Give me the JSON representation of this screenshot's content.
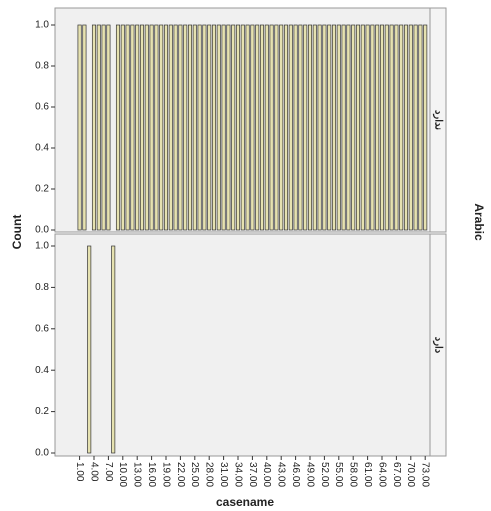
{
  "chart_data": {
    "type": "bar",
    "x_label": "casename",
    "y_label": "Count",
    "panel_group_label": "Arabic",
    "x": [
      1,
      2,
      3,
      4,
      5,
      6,
      7,
      8,
      9,
      10,
      11,
      12,
      13,
      14,
      15,
      16,
      17,
      18,
      19,
      20,
      21,
      22,
      23,
      24,
      25,
      26,
      27,
      28,
      29,
      30,
      31,
      32,
      33,
      34,
      35,
      36,
      37,
      38,
      39,
      40,
      41,
      42,
      43,
      44,
      45,
      46,
      47,
      48,
      49,
      50,
      51,
      52,
      53,
      54,
      55,
      56,
      57,
      58,
      59,
      60,
      61,
      62,
      63,
      64,
      65,
      66,
      67,
      68,
      69,
      70,
      71,
      72,
      73
    ],
    "xlim": [
      -3.5,
      74
    ],
    "xticks": [
      {
        "value": 1,
        "label": "1.00"
      },
      {
        "value": 4,
        "label": "4.00"
      },
      {
        "value": 7,
        "label": "7.00"
      },
      {
        "value": 10,
        "label": "10.00"
      },
      {
        "value": 13,
        "label": "13.00"
      },
      {
        "value": 16,
        "label": "16.00"
      },
      {
        "value": 19,
        "label": "19.00"
      },
      {
        "value": 22,
        "label": "22.00"
      },
      {
        "value": 25,
        "label": "25.00"
      },
      {
        "value": 28,
        "label": "28.00"
      },
      {
        "value": 31,
        "label": "31.00"
      },
      {
        "value": 34,
        "label": "34.00"
      },
      {
        "value": 37,
        "label": "37.00"
      },
      {
        "value": 40,
        "label": "40.00"
      },
      {
        "value": 43,
        "label": "43.00"
      },
      {
        "value": 46,
        "label": "46.00"
      },
      {
        "value": 49,
        "label": "49.00"
      },
      {
        "value": 52,
        "label": "52.00"
      },
      {
        "value": 55,
        "label": "55.00"
      },
      {
        "value": 58,
        "label": "58.00"
      },
      {
        "value": 61,
        "label": "61.00"
      },
      {
        "value": 64,
        "label": "64.00"
      },
      {
        "value": 67,
        "label": "67.00"
      },
      {
        "value": 70,
        "label": "70.00"
      },
      {
        "value": 73,
        "label": "73.00"
      }
    ],
    "ylim": [
      0,
      1
    ],
    "yticks": [
      {
        "value": 0,
        "label": "0.0"
      },
      {
        "value": 0.2,
        "label": "0.2"
      },
      {
        "value": 0.4,
        "label": "0.4"
      },
      {
        "value": 0.6,
        "label": "0.6"
      },
      {
        "value": 0.8,
        "label": "0.8"
      },
      {
        "value": 1,
        "label": "1.0"
      }
    ],
    "series": [
      {
        "name": "ندارد",
        "color": "#e6e2b0",
        "values": [
          1,
          1,
          null,
          1,
          1,
          1,
          1,
          null,
          1,
          1,
          1,
          1,
          1,
          1,
          1,
          1,
          1,
          1,
          1,
          1,
          1,
          1,
          1,
          1,
          1,
          1,
          1,
          1,
          1,
          1,
          1,
          1,
          1,
          1,
          1,
          1,
          1,
          1,
          1,
          1,
          1,
          1,
          1,
          1,
          1,
          1,
          1,
          1,
          1,
          1,
          1,
          1,
          1,
          1,
          1,
          1,
          1,
          1,
          1,
          1,
          1,
          1,
          1,
          1,
          1,
          1,
          1,
          1,
          1,
          1,
          1,
          1,
          1
        ]
      },
      {
        "name": "دارد",
        "color": "#e6e2b0",
        "values": [
          null,
          null,
          1,
          null,
          null,
          null,
          null,
          1,
          null,
          null,
          null,
          null,
          null,
          null,
          null,
          null,
          null,
          null,
          null,
          null,
          null,
          null,
          null,
          null,
          null,
          null,
          null,
          null,
          null,
          null,
          null,
          null,
          null,
          null,
          null,
          null,
          null,
          null,
          null,
          null,
          null,
          null,
          null,
          null,
          null,
          null,
          null,
          null,
          null,
          null,
          null,
          null,
          null,
          null,
          null,
          null,
          null,
          null,
          null,
          null,
          null,
          null,
          null,
          null,
          null,
          null,
          null,
          null,
          null,
          null,
          null,
          null,
          null
        ]
      }
    ]
  }
}
